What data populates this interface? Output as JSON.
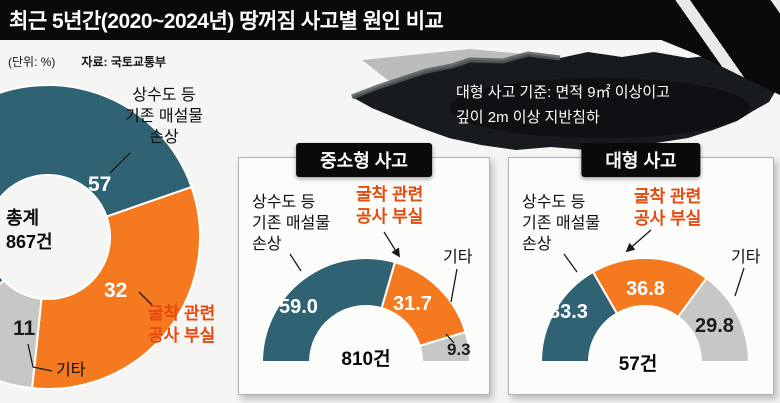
{
  "header": {
    "title": "최근 5년간(2020~2024년) 땅꺼짐 사고별 원인 비교",
    "unit_label": "(단위: %)",
    "source_label": "자료: 국토교통부"
  },
  "callout": {
    "line1": "대형 사고 기준: 면적 9㎡ 이상이고",
    "line2": "깊이 2m 이상 지반침하"
  },
  "labels": {
    "water": "상수도 등\n기존 매설물\n손상",
    "excavation": "굴착 관련\n공사 부실",
    "etc": "기타"
  },
  "colors": {
    "page_bg": "#f5f5f3",
    "header_bg": "#0a0a0a",
    "panel_bg": "#fcfcfb",
    "teal": "#2f6373",
    "orange": "#f5791f",
    "gray": "#c7c7c5",
    "red_accent": "#e64a0e",
    "blob_dark": "#171a1e"
  },
  "chart_data": [
    {
      "id": "total",
      "type": "pie",
      "shape": "donut",
      "title": "총계",
      "center_label_top": "총계",
      "center_label_value": "867건",
      "unit": "%",
      "categories": [
        "상수도 등 기존 매설물 손상",
        "굴착 관련 공사 부실",
        "기타"
      ],
      "values": [
        57,
        32,
        11
      ],
      "value_labels": [
        "57",
        "32",
        "11"
      ],
      "segment_colors": [
        "teal",
        "orange",
        "gray"
      ]
    },
    {
      "id": "small_medium",
      "type": "pie",
      "shape": "half-donut",
      "title": "중소형 사고",
      "center_label_value": "810건",
      "unit": "%",
      "categories": [
        "상수도 등 기존 매설물 손상",
        "굴착 관련 공사 부실",
        "기타"
      ],
      "values": [
        59.0,
        31.7,
        9.3
      ],
      "value_labels": [
        "59.0",
        "31.7",
        "9.3"
      ],
      "segment_colors": [
        "teal",
        "orange",
        "gray"
      ]
    },
    {
      "id": "large",
      "type": "pie",
      "shape": "half-donut",
      "title": "대형 사고",
      "center_label_value": "57건",
      "unit": "%",
      "categories": [
        "상수도 등 기존 매설물 손상",
        "굴착 관련 공사 부실",
        "기타"
      ],
      "values": [
        33.3,
        36.8,
        29.8
      ],
      "value_labels": [
        "33.3",
        "36.8",
        "29.8"
      ],
      "segment_colors": [
        "teal",
        "orange",
        "gray"
      ]
    }
  ]
}
